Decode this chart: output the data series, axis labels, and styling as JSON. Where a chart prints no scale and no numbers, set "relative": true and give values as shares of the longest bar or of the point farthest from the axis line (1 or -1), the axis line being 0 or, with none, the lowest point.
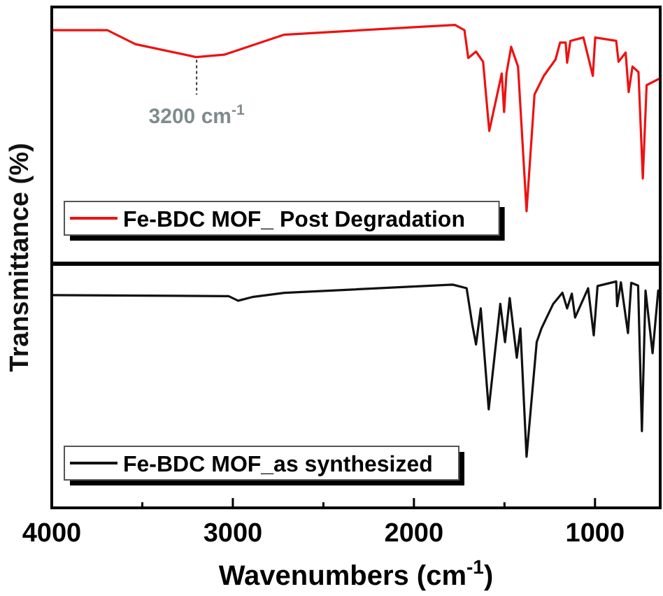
{
  "chart_data": [
    {
      "type": "line",
      "relative": true,
      "ylabel": "Transmittance (%)",
      "xlim": [
        4000,
        640
      ],
      "tick_labels": false,
      "legend": "bottom left",
      "line_style": "solid",
      "series": [
        {
          "name": "Fe-BDC MOF_ Post Degradation",
          "color": "#ee1111",
          "x": [
            4000,
            3693,
            3538,
            3203,
            3048,
            2716,
            1966,
            1773,
            1721,
            1700,
            1657,
            1618,
            1584,
            1515,
            1502,
            1489,
            1463,
            1425,
            1378,
            1334,
            1283,
            1218,
            1193,
            1162,
            1154,
            1136,
            1064,
            1012,
            999,
            883,
            870,
            831,
            814,
            793,
            760,
            736,
            715,
            651
          ],
          "values": [
            0.978,
            0.978,
            0.919,
            0.865,
            0.875,
            0.959,
            0.992,
            1.0,
            0.978,
            0.861,
            0.888,
            0.845,
            0.555,
            0.796,
            0.634,
            0.796,
            0.908,
            0.825,
            0.218,
            0.708,
            0.786,
            0.855,
            0.926,
            0.926,
            0.841,
            0.933,
            0.947,
            0.786,
            0.947,
            0.933,
            0.845,
            0.884,
            0.718,
            0.825,
            0.802,
            0.355,
            0.747,
            0.772
          ]
        }
      ],
      "annotations": [
        {
          "text": "3200 cm$^{-1}$",
          "x": 3200,
          "y": 0.865
        }
      ]
    },
    {
      "type": "line",
      "relative": true,
      "xlabel": "Wavenumbers (cm$^{-1}$)",
      "xlim": [
        4000,
        640
      ],
      "xticks": [
        4000,
        {
          "value": 3500,
          "label": null
        },
        3000,
        {
          "value": 2500,
          "label": null
        },
        2000,
        {
          "value": 1500,
          "label": null
        },
        1000
      ],
      "tick_labels": "x",
      "legend": "bottom left",
      "line_style": "solid",
      "series": [
        {
          "name": "Fe-BDC MOF_as synthesized",
          "color": "#111111",
          "x": [
            4000,
            3023,
            2971,
            2894,
            2716,
            1786,
            1709,
            1678,
            1657,
            1631,
            1587,
            1523,
            1497,
            1471,
            1432,
            1412,
            1378,
            1322,
            1296,
            1231,
            1180,
            1154,
            1128,
            1110,
            1038,
            1007,
            986,
            883,
            878,
            857,
            818,
            800,
            762,
            741,
            721,
            682,
            651
          ],
          "values": [
            0.94,
            0.935,
            0.915,
            0.931,
            0.95,
            0.986,
            0.97,
            0.811,
            0.722,
            0.881,
            0.435,
            0.901,
            0.732,
            0.927,
            0.663,
            0.792,
            0.226,
            0.732,
            0.792,
            0.901,
            0.95,
            0.881,
            0.946,
            0.841,
            0.97,
            0.762,
            0.98,
            1.0,
            0.891,
            0.996,
            0.772,
            0.994,
            0.982,
            0.339,
            0.96,
            0.683,
            0.96
          ]
        }
      ]
    }
  ]
}
